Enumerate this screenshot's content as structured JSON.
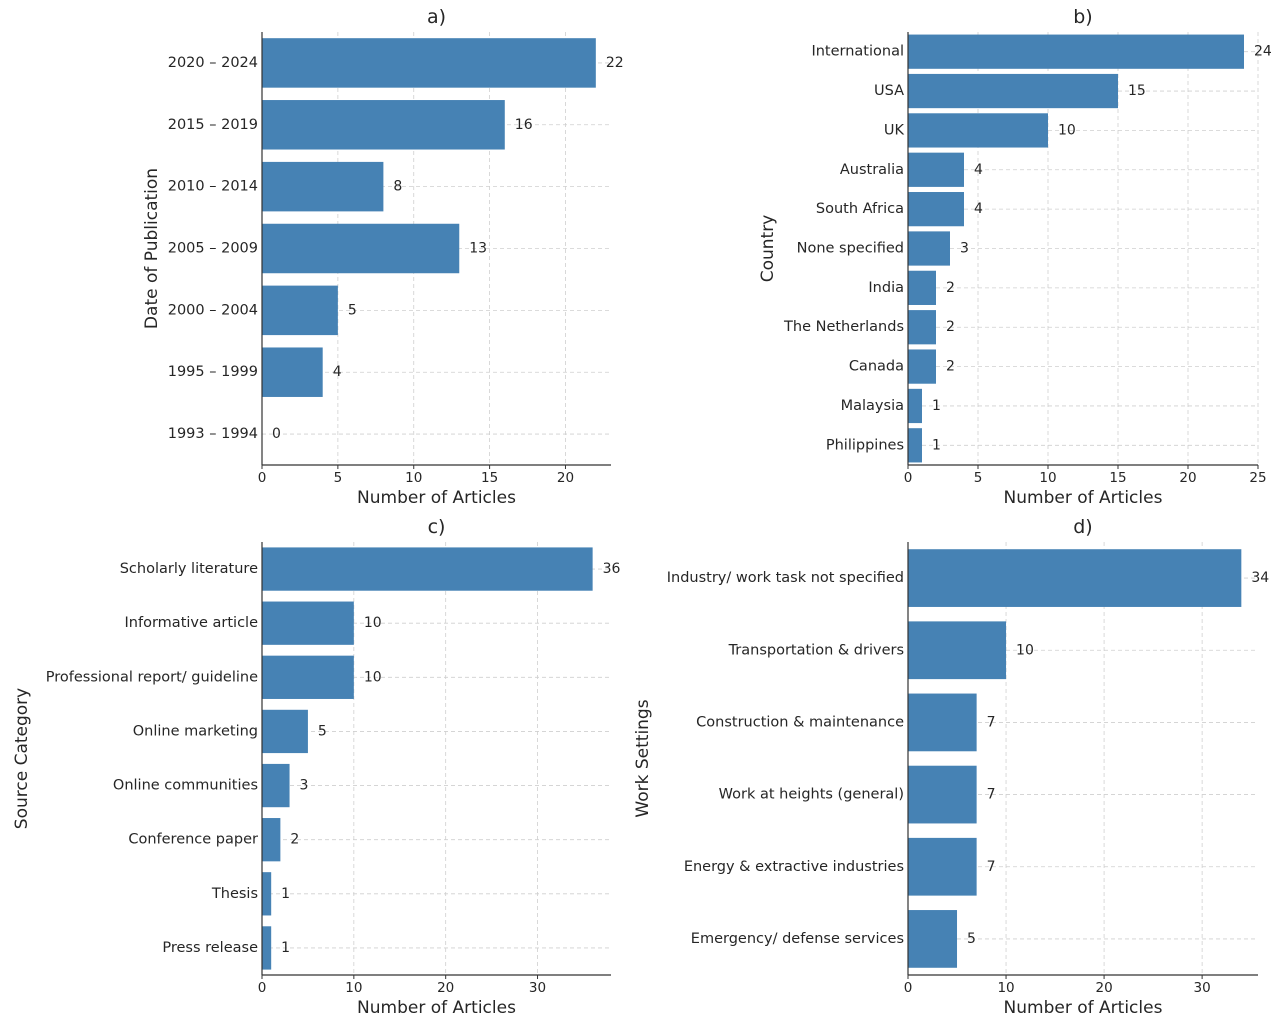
{
  "colors": {
    "bar": "#4682b4",
    "grid": "#cfcfcf",
    "axis": "#333333",
    "text": "#262626"
  },
  "chart_data": [
    {
      "type": "bar",
      "orientation": "horizontal",
      "title": "a)",
      "xlabel": "Number of Articles",
      "ylabel": "Date of Publication",
      "categories": [
        "2020 – 2024",
        "2015 – 2019",
        "2010 – 2014",
        "2005 – 2009",
        "2000 – 2004",
        "1995 – 1999",
        "1993 – 1994"
      ],
      "values": [
        22,
        16,
        8,
        13,
        5,
        4,
        0
      ],
      "xlim": [
        0,
        23
      ],
      "xticks": [
        0,
        5,
        10,
        15,
        20
      ],
      "grid": true,
      "data_labels": true
    },
    {
      "type": "bar",
      "orientation": "horizontal",
      "title": "b)",
      "xlabel": "Number of Articles",
      "ylabel": "Country",
      "categories": [
        "International",
        "USA",
        "UK",
        "Australia",
        "South Africa",
        "None specified",
        "India",
        "The Netherlands",
        "Canada",
        "Malaysia",
        "Philippines"
      ],
      "values": [
        24,
        15,
        10,
        4,
        4,
        3,
        2,
        2,
        2,
        1,
        1
      ],
      "xlim": [
        0,
        25
      ],
      "xticks": [
        0,
        5,
        10,
        15,
        20,
        25
      ],
      "grid": true,
      "data_labels": true
    },
    {
      "type": "bar",
      "orientation": "horizontal",
      "title": "c)",
      "xlabel": "Number of Articles",
      "ylabel": "Source Category",
      "categories": [
        "Scholarly literature",
        "Informative article",
        "Professional report/ guideline",
        "Online marketing",
        "Online communities",
        "Conference paper",
        "Thesis",
        "Press release"
      ],
      "values": [
        36,
        10,
        10,
        5,
        3,
        2,
        1,
        1
      ],
      "xlim": [
        0,
        38
      ],
      "xticks": [
        0,
        10,
        20,
        30
      ],
      "grid": true,
      "data_labels": true
    },
    {
      "type": "bar",
      "orientation": "horizontal",
      "title": "d)",
      "xlabel": "Number of Articles",
      "ylabel": "Work Settings",
      "categories": [
        "Industry/ work task not specified",
        "Transportation & drivers",
        "Construction & maintenance",
        "Work at heights (general)",
        "Energy & extractive industries",
        "Emergency/ defense services"
      ],
      "values": [
        34,
        10,
        7,
        7,
        7,
        5
      ],
      "xlim": [
        0,
        35.7
      ],
      "xticks": [
        0,
        10,
        20,
        30
      ],
      "grid": true,
      "data_labels": true
    }
  ]
}
